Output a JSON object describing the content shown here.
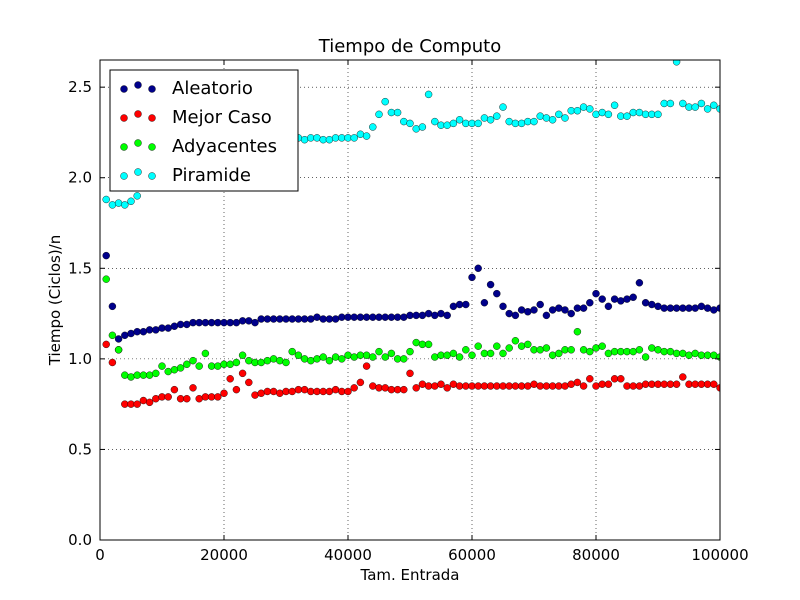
{
  "chart_data": {
    "type": "scatter",
    "title": "Tiempo de Computo",
    "xlabel": "Tam. Entrada",
    "ylabel": "Tiempo (Ciclos)/n",
    "xlim": [
      0,
      100000
    ],
    "ylim": [
      0,
      2.65
    ],
    "xticks": [
      0,
      20000,
      40000,
      60000,
      80000,
      100000
    ],
    "xtick_labels": [
      "0",
      "20000",
      "40000",
      "60000",
      "80000",
      "100000"
    ],
    "yticks": [
      0,
      0.5,
      1.0,
      1.5,
      2.0,
      2.5
    ],
    "ytick_labels": [
      "0.0",
      "0.5",
      "1.0",
      "1.5",
      "2.0",
      "2.5"
    ],
    "grid": true,
    "legend_position": "top-left",
    "x": [
      1000,
      2000,
      3000,
      4000,
      5000,
      6000,
      7000,
      8000,
      9000,
      10000,
      11000,
      12000,
      13000,
      14000,
      15000,
      16000,
      17000,
      18000,
      19000,
      20000,
      21000,
      22000,
      23000,
      24000,
      25000,
      26000,
      27000,
      28000,
      29000,
      30000,
      31000,
      32000,
      33000,
      34000,
      35000,
      36000,
      37000,
      38000,
      39000,
      40000,
      41000,
      42000,
      43000,
      44000,
      45000,
      46000,
      47000,
      48000,
      49000,
      50000,
      51000,
      52000,
      53000,
      54000,
      55000,
      56000,
      57000,
      58000,
      59000,
      60000,
      61000,
      62000,
      63000,
      64000,
      65000,
      66000,
      67000,
      68000,
      69000,
      70000,
      71000,
      72000,
      73000,
      74000,
      75000,
      76000,
      77000,
      78000,
      79000,
      80000,
      81000,
      82000,
      83000,
      84000,
      85000,
      86000,
      87000,
      88000,
      89000,
      90000,
      91000,
      92000,
      93000,
      94000,
      95000,
      96000,
      97000,
      98000,
      99000,
      100000
    ],
    "series": [
      {
        "name": "Aleatorio",
        "color": "#00008b",
        "values": [
          1.57,
          1.29,
          1.11,
          1.13,
          1.14,
          1.15,
          1.15,
          1.16,
          1.16,
          1.17,
          1.17,
          1.18,
          1.19,
          1.19,
          1.2,
          1.2,
          1.2,
          1.2,
          1.2,
          1.2,
          1.2,
          1.2,
          1.21,
          1.21,
          1.2,
          1.22,
          1.22,
          1.22,
          1.22,
          1.22,
          1.22,
          1.22,
          1.22,
          1.22,
          1.23,
          1.22,
          1.22,
          1.22,
          1.23,
          1.23,
          1.23,
          1.23,
          1.23,
          1.23,
          1.23,
          1.23,
          1.23,
          1.23,
          1.23,
          1.24,
          1.24,
          1.24,
          1.25,
          1.24,
          1.25,
          1.24,
          1.29,
          1.3,
          1.3,
          1.45,
          1.5,
          1.31,
          1.41,
          1.36,
          1.29,
          1.25,
          1.24,
          1.27,
          1.26,
          1.27,
          1.3,
          1.24,
          1.27,
          1.28,
          1.27,
          1.25,
          1.28,
          1.28,
          1.31,
          1.36,
          1.33,
          1.29,
          1.33,
          1.32,
          1.33,
          1.34,
          1.42,
          1.31,
          1.3,
          1.29,
          1.28,
          1.28,
          1.28,
          1.28,
          1.28,
          1.28,
          1.29,
          1.28,
          1.27,
          1.28
        ]
      },
      {
        "name": "Mejor Caso",
        "color": "#ff0000",
        "values": [
          1.08,
          0.98,
          1.05,
          0.75,
          0.75,
          0.75,
          0.77,
          0.76,
          0.78,
          0.79,
          0.79,
          0.83,
          0.78,
          0.78,
          0.84,
          0.78,
          0.79,
          0.79,
          0.79,
          0.81,
          0.89,
          0.83,
          0.92,
          0.87,
          0.8,
          0.81,
          0.82,
          0.82,
          0.81,
          0.82,
          0.82,
          0.83,
          0.83,
          0.82,
          0.82,
          0.82,
          0.82,
          0.83,
          0.82,
          0.82,
          0.84,
          0.87,
          0.96,
          0.85,
          0.84,
          0.84,
          0.83,
          0.83,
          0.83,
          0.92,
          0.84,
          0.86,
          0.85,
          0.85,
          0.86,
          0.84,
          0.86,
          0.85,
          0.85,
          0.85,
          0.85,
          0.85,
          0.85,
          0.85,
          0.85,
          0.85,
          0.85,
          0.85,
          0.85,
          0.86,
          0.85,
          0.85,
          0.85,
          0.85,
          0.85,
          0.86,
          0.87,
          0.85,
          0.89,
          0.85,
          0.86,
          0.86,
          0.89,
          0.89,
          0.85,
          0.85,
          0.85,
          0.86,
          0.86,
          0.86,
          0.86,
          0.86,
          0.86,
          0.9,
          0.86,
          0.86,
          0.86,
          0.86,
          0.86,
          0.84
        ]
      },
      {
        "name": "Adyacentes",
        "color": "#00ff00",
        "values": [
          1.44,
          1.13,
          1.05,
          0.91,
          0.9,
          0.91,
          0.91,
          0.91,
          0.92,
          0.96,
          0.93,
          0.94,
          0.95,
          0.97,
          0.99,
          0.96,
          1.03,
          0.96,
          0.96,
          0.97,
          0.97,
          0.98,
          1.02,
          0.99,
          0.98,
          0.98,
          0.99,
          1.0,
          0.99,
          0.98,
          1.04,
          1.02,
          1.0,
          0.99,
          1.0,
          1.01,
          0.99,
          1.01,
          1.0,
          1.02,
          1.01,
          1.02,
          1.02,
          1.01,
          1.04,
          1.01,
          1.03,
          1.0,
          1.0,
          1.04,
          1.09,
          1.08,
          1.08,
          1.01,
          1.02,
          1.02,
          1.03,
          1.01,
          1.05,
          1.02,
          1.07,
          1.03,
          1.03,
          1.07,
          1.03,
          1.06,
          1.1,
          1.07,
          1.08,
          1.05,
          1.05,
          1.06,
          1.02,
          1.03,
          1.05,
          1.05,
          1.15,
          1.05,
          1.04,
          1.06,
          1.07,
          1.03,
          1.04,
          1.04,
          1.04,
          1.04,
          1.05,
          1.01,
          1.06,
          1.05,
          1.04,
          1.04,
          1.03,
          1.03,
          1.02,
          1.03,
          1.02,
          1.02,
          1.02,
          1.01
        ]
      },
      {
        "name": "Piramide",
        "color": "#00ffff",
        "values": [
          1.88,
          1.85,
          1.86,
          1.85,
          1.87,
          1.9,
          1.95,
          2.0,
          2.05,
          2.1,
          2.12,
          2.12,
          2.15,
          2.15,
          2.15,
          2.18,
          2.2,
          2.2,
          2.21,
          2.21,
          2.21,
          2.21,
          2.21,
          2.21,
          2.21,
          2.21,
          2.21,
          2.21,
          2.21,
          2.21,
          2.22,
          2.22,
          2.21,
          2.22,
          2.22,
          2.21,
          2.21,
          2.22,
          2.22,
          2.22,
          2.22,
          2.24,
          2.23,
          2.28,
          2.35,
          2.42,
          2.36,
          2.36,
          2.31,
          2.3,
          2.27,
          2.28,
          2.46,
          2.31,
          2.29,
          2.29,
          2.3,
          2.32,
          2.3,
          2.3,
          2.3,
          2.33,
          2.32,
          2.34,
          2.39,
          2.31,
          2.3,
          2.3,
          2.31,
          2.31,
          2.34,
          2.33,
          2.32,
          2.35,
          2.33,
          2.37,
          2.37,
          2.39,
          2.38,
          2.35,
          2.36,
          2.35,
          2.4,
          2.34,
          2.34,
          2.36,
          2.36,
          2.35,
          2.35,
          2.35,
          2.41,
          2.41,
          2.64,
          2.41,
          2.39,
          2.39,
          2.41,
          2.38,
          2.4,
          2.38
        ]
      }
    ]
  }
}
